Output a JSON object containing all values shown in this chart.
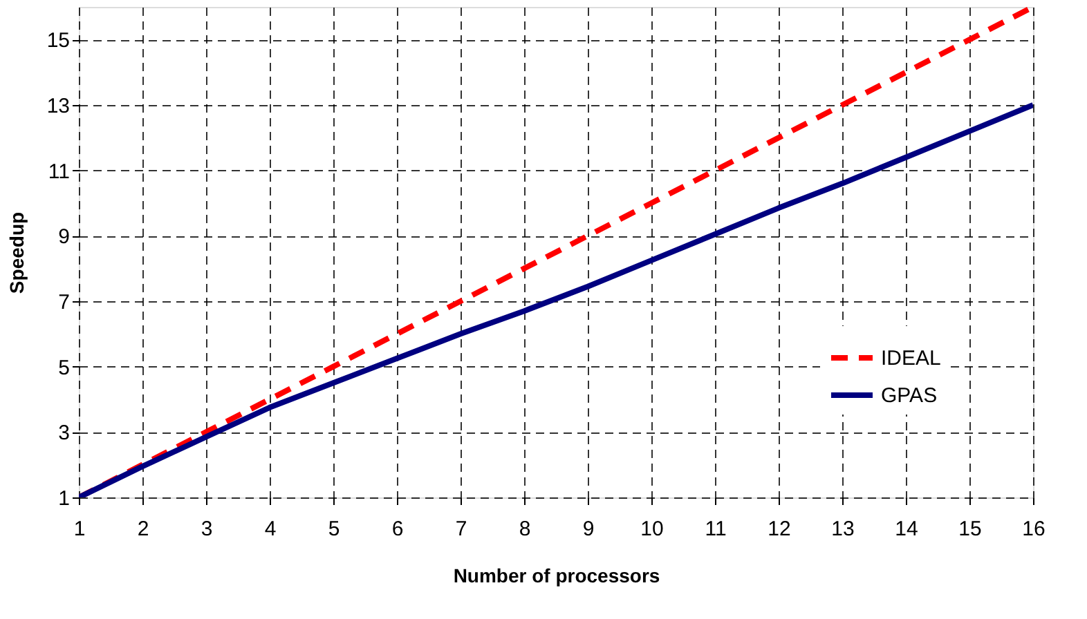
{
  "chart_data": {
    "type": "line",
    "xlabel": "Number of processors",
    "ylabel": "Speedup",
    "x": [
      1,
      2,
      3,
      4,
      5,
      6,
      7,
      8,
      9,
      10,
      11,
      12,
      13,
      14,
      15,
      16
    ],
    "series": [
      {
        "name": "IDEAL",
        "color": "#ff0000",
        "line_style": "dashed",
        "values": [
          1,
          2,
          3,
          4,
          5,
          6,
          7,
          8,
          9,
          10,
          11,
          12,
          13,
          14,
          15,
          16
        ]
      },
      {
        "name": "GPAS",
        "color": "#000080",
        "line_style": "solid",
        "values": [
          1,
          1.95,
          2.85,
          3.75,
          4.5,
          5.25,
          6,
          6.7,
          7.45,
          8.25,
          9.05,
          9.85,
          10.6,
          11.4,
          12.2,
          13
        ]
      }
    ],
    "xlim": [
      1,
      16
    ],
    "xticks": [
      1,
      2,
      3,
      4,
      5,
      6,
      7,
      8,
      9,
      10,
      11,
      12,
      13,
      14,
      15,
      16
    ],
    "ylim": [
      1,
      16
    ],
    "yticks": [
      1,
      3,
      5,
      7,
      9,
      11,
      13,
      15
    ],
    "grid": true,
    "legend": "bottom right",
    "marker": "none"
  }
}
